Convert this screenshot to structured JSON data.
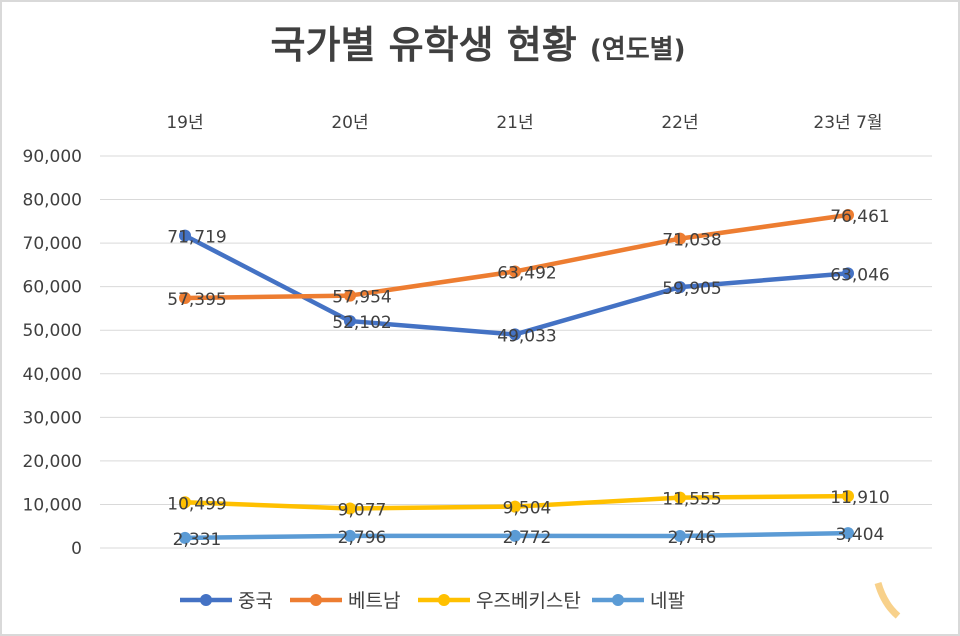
{
  "chart_data": {
    "type": "line",
    "title": "국가별 유학생 현황",
    "title_suffix": "(연도별)",
    "categories": [
      "19년",
      "20년",
      "21년",
      "22년",
      "23년 7월"
    ],
    "category_axis_position": "top",
    "ylim": [
      0,
      90000
    ],
    "yticks": [
      "0",
      "10,000",
      "20,000",
      "30,000",
      "40,000",
      "50,000",
      "60,000",
      "70,000",
      "80,000",
      "90,000"
    ],
    "grid": true,
    "legend_position": "bottom",
    "series": [
      {
        "name": "중국",
        "color": "#4472c4",
        "values": [
          71719,
          52102,
          49033,
          59905,
          63046
        ],
        "labels": [
          "71,719",
          "52,102",
          "49,033",
          "59,905",
          "63,046"
        ]
      },
      {
        "name": "베트남",
        "color": "#ed7d31",
        "values": [
          57395,
          57954,
          63492,
          71038,
          76461
        ],
        "labels": [
          "57,395",
          "57,954",
          "63,492",
          "71,038",
          "76,461"
        ]
      },
      {
        "name": "우즈베키스탄",
        "color": "#ffc000",
        "values": [
          10499,
          9077,
          9504,
          11555,
          11910
        ],
        "labels": [
          "10,499",
          "9,077",
          "9,504",
          "11,555",
          "11,910"
        ]
      },
      {
        "name": "네팔",
        "color": "#5b9bd5",
        "values": [
          2331,
          2796,
          2772,
          2746,
          3404
        ],
        "labels": [
          "2,331",
          "2,796",
          "2,772",
          "2,746",
          "3,404"
        ]
      }
    ]
  }
}
